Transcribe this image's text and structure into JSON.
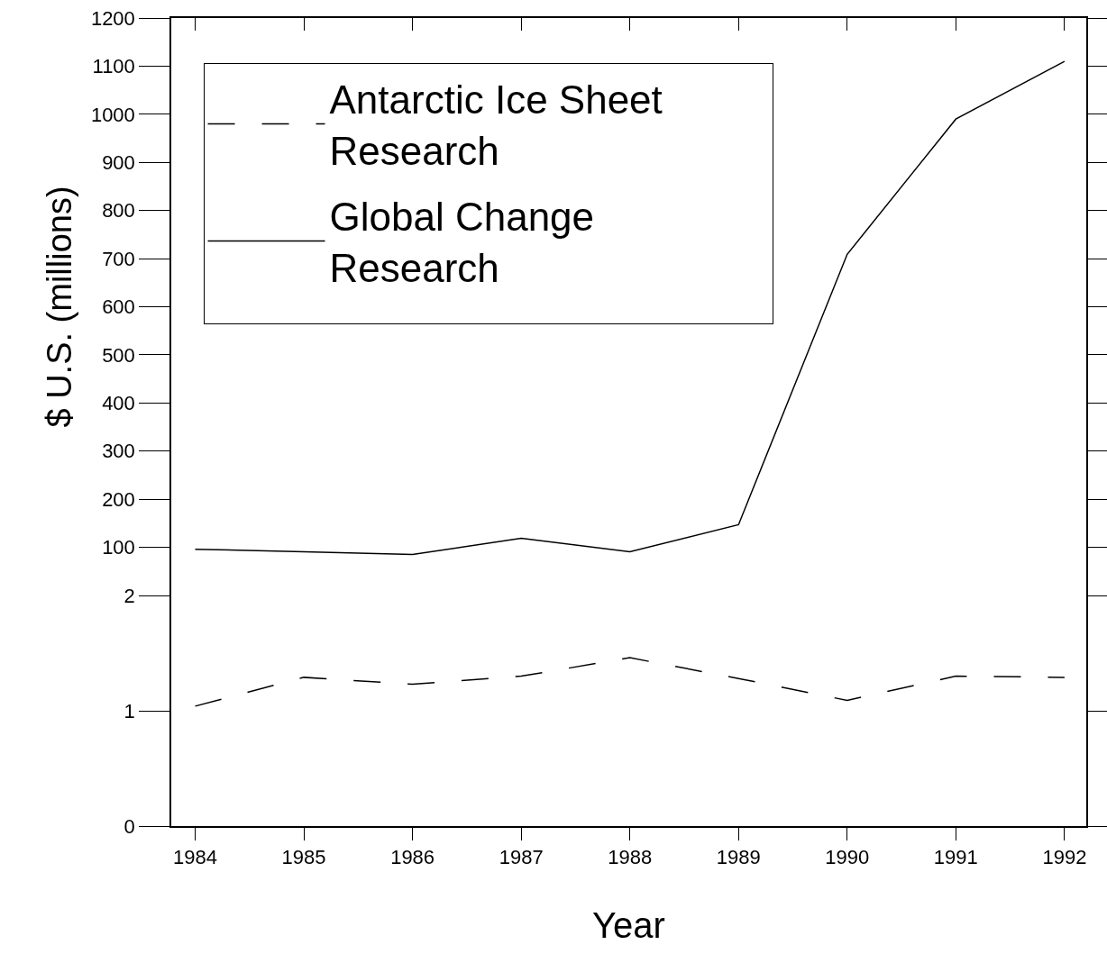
{
  "chart_data": [
    {
      "type": "line",
      "ylabel": "$ U.S. (millions)",
      "x": [
        1984,
        1985,
        1986,
        1987,
        1988,
        1989,
        1990,
        1991,
        1992
      ],
      "series": [
        {
          "name": "Global Change Research",
          "color": "#000000",
          "line_style": "solid",
          "values": [
            96,
            91,
            85,
            119,
            91,
            147,
            709,
            990,
            1110
          ]
        }
      ],
      "xlim": [
        1983.78,
        1992.2
      ],
      "xticks": [
        1984,
        1985,
        1986,
        1987,
        1988,
        1989,
        1990,
        1991,
        1992
      ],
      "ylim": [
        0,
        1200
      ],
      "yticks": [
        100,
        200,
        300,
        400,
        500,
        600,
        700,
        800,
        900,
        1000,
        1100,
        1200
      ],
      "tick_labels": "y",
      "legend": "top left"
    },
    {
      "type": "line",
      "xlabel": "Year",
      "x": [
        1984,
        1985,
        1986,
        1987,
        1988,
        1989,
        1990,
        1991,
        1992
      ],
      "series": [
        {
          "name": "Antarctic Ice Sheet Research",
          "color": "#000000",
          "line_style": "dashed",
          "values": [
            1.04,
            1.29,
            1.23,
            1.3,
            1.46,
            1.28,
            1.09,
            1.3,
            1.29
          ]
        }
      ],
      "xlim": [
        1983.78,
        1992.2
      ],
      "xticks": [
        1984,
        1985,
        1986,
        1987,
        1988,
        1989,
        1990,
        1991,
        1992
      ],
      "ylim": [
        0,
        2
      ],
      "yticks": [
        0,
        1,
        2
      ],
      "legend": "top left"
    }
  ]
}
